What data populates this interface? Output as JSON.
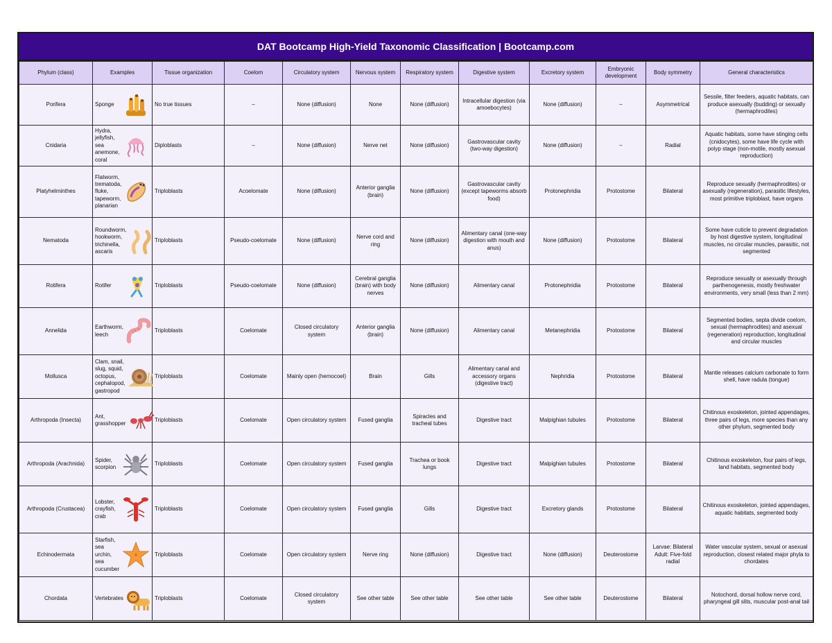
{
  "title": "DAT Bootcamp High-Yield Taxonomic Classification | Bootcamp.com",
  "headers": [
    "Phylum (class)",
    "Examples",
    "Tissue organization",
    "Coelom",
    "Circulatory system",
    "Nervous system",
    "Respiratory system",
    "Digestive system",
    "Excretory system",
    "Embryonic development",
    "Body symmetry",
    "General characteristics"
  ],
  "rows": [
    {
      "phylum": "Porifera",
      "examples": "Sponge",
      "icon": "sponge-icon",
      "tissue": "No true tissues",
      "coelom": "–",
      "circulatory": "None (diffusion)",
      "nervous": "None",
      "respiratory": "None (diffusion)",
      "digestive": "Intracellular digestion (via amoebocytes)",
      "excretory": "None (diffusion)",
      "embryonic": "–",
      "symmetry": "Asymmetrical",
      "general": "Sessile, filter feeders, aquatic habitats, can produce asexually (budding) or sexually (hermaphrodites)"
    },
    {
      "phylum": "Cnidaria",
      "examples": "Hydra, jellyfish, sea anemone, coral",
      "icon": "jellyfish-icon",
      "tissue": "Diploblasts",
      "coelom": "–",
      "circulatory": "None (diffusion)",
      "nervous": "Nerve net",
      "respiratory": "None (diffusion)",
      "digestive": "Gastrovascular cavity (two-way digestion)",
      "excretory": "None (diffusion)",
      "embryonic": "–",
      "symmetry": "Radial",
      "general": "Aquatic habitats, some have stinging cells (cnidocytes), some have life cycle with polyp stage (non-motile, mostly asexual reproduction)"
    },
    {
      "phylum": "Platyhelminthes",
      "examples": "Flatworm, trematoda, fluke, tapeworm, planarian",
      "icon": "flatworm-icon",
      "tissue": "Triploblasts",
      "coelom": "Acoelomate",
      "circulatory": "None (diffusion)",
      "nervous": "Anterior ganglia (brain)",
      "respiratory": "None (diffusion)",
      "digestive": "Gastrovascular cavity (except tapeworms absorb food)",
      "excretory": "Protonephridia",
      "embryonic": "Protostome",
      "symmetry": "Bilateral",
      "general": "Reproduce sexually (hermaphrodites) or asexually (regeneration), parasitic lifestyles, most primitive triploblast, have organs"
    },
    {
      "phylum": "Nematoda",
      "examples": "Roundworm, hookworm, trichinella, ascaris",
      "icon": "roundworm-icon",
      "tissue": "Triploblasts",
      "coelom": "Pseudo-coelomate",
      "circulatory": "None (diffusion)",
      "nervous": "Nerve cord and ring",
      "respiratory": "None (diffusion)",
      "digestive": "Alimentary canal (one-way digestion with mouth and anus)",
      "excretory": "None (diffusion)",
      "embryonic": "Protostome",
      "symmetry": "Bilateral",
      "general": "Some have cuticle to prevent degradation by host digestive system, longitudinal muscles, no circular muscles, parasitic, not segmented"
    },
    {
      "phylum": "Rotifera",
      "examples": "Rotifer",
      "icon": "rotifer-icon",
      "tissue": "Triploblasts",
      "coelom": "Pseudo-coelomate",
      "circulatory": "None (diffusion)",
      "nervous": "Cerebral ganglia (brain) with body nerves",
      "respiratory": "None (diffusion)",
      "digestive": "Alimentary canal",
      "excretory": "Protonephridia",
      "embryonic": "Protostome",
      "symmetry": "Bilateral",
      "general": "Reproduce sexually or asexually through parthenogenesis, mostly freshwater environments, very small (less than 2 mm)"
    },
    {
      "phylum": "Annelida",
      "examples": "Earthworm, leech",
      "icon": "earthworm-icon",
      "tissue": "Triploblasts",
      "coelom": "Coelomate",
      "circulatory": "Closed circulatory system",
      "nervous": "Anterior ganglia (brain)",
      "respiratory": "None (diffusion)",
      "digestive": "Alimentary canal",
      "excretory": "Metanephridia",
      "embryonic": "Protostome",
      "symmetry": "Bilateral",
      "general": "Segmented bodies, septa divide coelom, sexual (hermaphrodites) and asexual (regeneration) reproduction, longitudinal and circular muscles"
    },
    {
      "phylum": "Mollusca",
      "examples": "Clam, snail, slug, squid, octopus, cephalopod, gastropod",
      "icon": "snail-icon",
      "tissue": "Triploblasts",
      "coelom": "Coelomate",
      "circulatory": "Mainly open (hemocoel)",
      "nervous": "Brain",
      "respiratory": "Gills",
      "digestive": "Alimentary canal and accessory organs (digestive tract)",
      "excretory": "Nephridia",
      "embryonic": "Protostome",
      "symmetry": "Bilateral",
      "general": "Mantle releases calcium carbonate to form shell, have radula (tongue)"
    },
    {
      "phylum": "Arthropoda (Insecta)",
      "examples": "Ant, grasshopper",
      "icon": "ant-icon",
      "tissue": "Triploblasts",
      "coelom": "Coelomate",
      "circulatory": "Open circulatory system",
      "nervous": "Fused ganglia",
      "respiratory": "Spiracles and tracheal tubes",
      "digestive": "Digestive tract",
      "excretory": "Malpighian tubules",
      "embryonic": "Protostome",
      "symmetry": "Bilateral",
      "general": "Chitinous exoskeleton, jointed appendages, three pairs of legs, more species than any other phylum, segmented body"
    },
    {
      "phylum": "Arthropoda (Arachnida)",
      "examples": "Spider, scorpion",
      "icon": "spider-icon",
      "tissue": "Triploblasts",
      "coelom": "Coelomate",
      "circulatory": "Open circulatory system",
      "nervous": "Fused ganglia",
      "respiratory": "Trachea or book lungs",
      "digestive": "Digestive tract",
      "excretory": "Malpighian tubules",
      "embryonic": "Protostome",
      "symmetry": "Bilateral",
      "general": "Chitinous exoskeleton, four pairs of legs, land habitats, segmented body"
    },
    {
      "phylum": "Arthropoda (Crustacea)",
      "examples": "Lobster, crayfish, crab",
      "icon": "lobster-icon",
      "tissue": "Triploblasts",
      "coelom": "Coelomate",
      "circulatory": "Open circulatory system",
      "nervous": "Fused ganglia",
      "respiratory": "Gills",
      "digestive": "Digestive tract",
      "excretory": "Excretory glands",
      "embryonic": "Protostome",
      "symmetry": "Bilateral",
      "general": "Chitinous exoskeleton, jointed appendages, aquatic habitats, segmented body"
    },
    {
      "phylum": "Echinodermata",
      "examples": "Starfish, sea urchin, sea cucumber",
      "icon": "starfish-icon",
      "tissue": "Triploblasts",
      "coelom": "Coelomate",
      "circulatory": "Open circulatory system",
      "nervous": "Nerve ring",
      "respiratory": "None (diffusion)",
      "digestive": "Digestive tract",
      "excretory": "None (diffusion)",
      "embryonic": "Deuterostome",
      "symmetry": "Larvae: Bilateral Adult: Five-fold radial",
      "general": "Water vascular system, sexual or asexual reproduction, closest related major phyla to chordates"
    },
    {
      "phylum": "Chordata",
      "examples": "Vertebrates",
      "icon": "lion-icon",
      "tissue": "Triploblasts",
      "coelom": "Coelomate",
      "circulatory": "Closed circulatory system",
      "nervous": "See other table",
      "respiratory": "See other table",
      "digestive": "See other table",
      "excretory": "See other table",
      "embryonic": "Deuterostome",
      "symmetry": "Bilateral",
      "general": "Notochord, dorsal hollow nerve cord, pharyngeal gill slits, muscular post-anal tail"
    }
  ]
}
